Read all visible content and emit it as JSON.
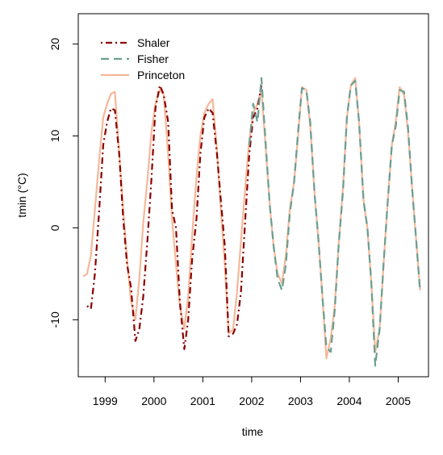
{
  "chart_data": {
    "type": "line",
    "xlabel": "time",
    "ylabel": "tmin (°C)",
    "xlim": [
      1998.45,
      2005.62
    ],
    "ylim": [
      -16.2,
      23.3
    ],
    "x_ticks": [
      1999,
      2000,
      2001,
      2002,
      2003,
      2004,
      2005
    ],
    "y_ticks": [
      -10,
      0,
      10,
      20
    ],
    "grid": false,
    "legend_position": "top-left",
    "series": [
      {
        "name": "Shaler",
        "color": "#8b0000",
        "dash": "dotdash",
        "points": [
          [
            1998.63,
            -8.5
          ],
          [
            1998.71,
            -8.8
          ],
          [
            1998.79,
            -5.0
          ],
          [
            1998.88,
            2.0
          ],
          [
            1998.96,
            9.0
          ],
          [
            1999.04,
            11.5
          ],
          [
            1999.12,
            13.0
          ],
          [
            1999.2,
            12.8
          ],
          [
            1999.29,
            8.0
          ],
          [
            1999.37,
            1.0
          ],
          [
            1999.45,
            -4.0
          ],
          [
            1999.53,
            -6.5
          ],
          [
            1999.62,
            -12.3
          ],
          [
            1999.7,
            -11.0
          ],
          [
            1999.78,
            -7.5
          ],
          [
            1999.87,
            -1.0
          ],
          [
            1999.95,
            5.5
          ],
          [
            2000.03,
            13.0
          ],
          [
            2000.12,
            15.5
          ],
          [
            2000.2,
            14.5
          ],
          [
            2000.29,
            11.5
          ],
          [
            2000.37,
            2.0
          ],
          [
            2000.45,
            0.0
          ],
          [
            2000.53,
            -8.0
          ],
          [
            2000.62,
            -13.2
          ],
          [
            2000.7,
            -10.0
          ],
          [
            2000.78,
            -3.5
          ],
          [
            2000.87,
            1.0
          ],
          [
            2000.95,
            8.0
          ],
          [
            2001.03,
            12.0
          ],
          [
            2001.12,
            13.0
          ],
          [
            2001.2,
            12.5
          ],
          [
            2001.29,
            8.0
          ],
          [
            2001.37,
            3.0
          ],
          [
            2001.45,
            -2.0
          ],
          [
            2001.53,
            -11.8
          ],
          [
            2001.62,
            -11.5
          ],
          [
            2001.7,
            -10.5
          ],
          [
            2001.78,
            -7.0
          ],
          [
            2001.87,
            1.0
          ],
          [
            2001.95,
            8.0
          ],
          [
            2002.03,
            12.0
          ],
          [
            2002.12,
            13.0
          ],
          [
            2002.2,
            15.5
          ]
        ]
      },
      {
        "name": "Fisher",
        "color": "#6a9f91",
        "dash": "dashed",
        "points": [
          [
            2001.95,
            9.0
          ],
          [
            2002.03,
            13.5
          ],
          [
            2002.12,
            11.5
          ],
          [
            2002.2,
            16.3
          ],
          [
            2002.29,
            9.0
          ],
          [
            2002.37,
            2.5
          ],
          [
            2002.45,
            -2.0
          ],
          [
            2002.53,
            -5.5
          ],
          [
            2002.62,
            -6.8
          ],
          [
            2002.7,
            -4.0
          ],
          [
            2002.78,
            1.5
          ],
          [
            2002.87,
            5.0
          ],
          [
            2002.95,
            10.5
          ],
          [
            2003.03,
            15.2
          ],
          [
            2003.12,
            15.0
          ],
          [
            2003.2,
            11.5
          ],
          [
            2003.29,
            3.5
          ],
          [
            2003.37,
            -1.5
          ],
          [
            2003.45,
            -7.5
          ],
          [
            2003.53,
            -13.0
          ],
          [
            2003.62,
            -13.5
          ],
          [
            2003.7,
            -9.0
          ],
          [
            2003.78,
            -2.0
          ],
          [
            2003.87,
            4.0
          ],
          [
            2003.95,
            12.0
          ],
          [
            2004.03,
            15.5
          ],
          [
            2004.12,
            16.0
          ],
          [
            2004.2,
            11.5
          ],
          [
            2004.29,
            3.0
          ],
          [
            2004.37,
            0.0
          ],
          [
            2004.45,
            -6.0
          ],
          [
            2004.53,
            -15.0
          ],
          [
            2004.62,
            -11.0
          ],
          [
            2004.7,
            -4.0
          ],
          [
            2004.78,
            2.5
          ],
          [
            2004.87,
            9.0
          ],
          [
            2004.95,
            11.0
          ],
          [
            2005.03,
            15.0
          ],
          [
            2005.12,
            14.8
          ],
          [
            2005.2,
            11.0
          ],
          [
            2005.29,
            4.0
          ],
          [
            2005.37,
            -1.5
          ],
          [
            2005.45,
            -7.0
          ]
        ]
      },
      {
        "name": "Princeton",
        "color": "#f5b899",
        "dash": "solid",
        "points": [
          [
            1998.55,
            -5.3
          ],
          [
            1998.63,
            -5.0
          ],
          [
            1998.71,
            -3.0
          ],
          [
            1998.79,
            2.0
          ],
          [
            1998.88,
            7.5
          ],
          [
            1998.96,
            12.0
          ],
          [
            1999.04,
            13.5
          ],
          [
            1999.12,
            14.6
          ],
          [
            1999.2,
            14.8
          ],
          [
            1999.29,
            8.0
          ],
          [
            1999.37,
            2.0
          ],
          [
            1999.45,
            -3.5
          ],
          [
            1999.53,
            -8.0
          ],
          [
            1999.62,
            -10.0
          ],
          [
            1999.7,
            -5.5
          ],
          [
            1999.78,
            0.5
          ],
          [
            1999.87,
            5.5
          ],
          [
            1999.95,
            10.5
          ],
          [
            2000.03,
            13.5
          ],
          [
            2000.12,
            15.0
          ],
          [
            2000.2,
            14.5
          ],
          [
            2000.29,
            8.0
          ],
          [
            2000.37,
            1.0
          ],
          [
            2000.45,
            -4.0
          ],
          [
            2000.53,
            -8.5
          ],
          [
            2000.62,
            -11.0
          ],
          [
            2000.7,
            -7.5
          ],
          [
            2000.78,
            -1.0
          ],
          [
            2000.87,
            5.5
          ],
          [
            2000.95,
            10.0
          ],
          [
            2001.03,
            12.5
          ],
          [
            2001.12,
            13.5
          ],
          [
            2001.2,
            14.0
          ],
          [
            2001.29,
            8.5
          ],
          [
            2001.37,
            2.0
          ],
          [
            2001.45,
            -4.0
          ],
          [
            2001.53,
            -11.5
          ],
          [
            2001.62,
            -11.0
          ],
          [
            2001.7,
            -7.0
          ],
          [
            2001.78,
            -1.5
          ],
          [
            2001.87,
            4.5
          ],
          [
            2001.95,
            9.5
          ],
          [
            2002.03,
            12.5
          ],
          [
            2002.12,
            13.5
          ],
          [
            2002.2,
            15.0
          ],
          [
            2002.29,
            8.5
          ],
          [
            2002.37,
            2.5
          ],
          [
            2002.45,
            -2.0
          ],
          [
            2002.53,
            -5.0
          ],
          [
            2002.62,
            -6.0
          ],
          [
            2002.7,
            -3.0
          ],
          [
            2002.78,
            2.0
          ],
          [
            2002.87,
            5.0
          ],
          [
            2002.95,
            10.0
          ],
          [
            2003.03,
            15.3
          ],
          [
            2003.12,
            15.0
          ],
          [
            2003.2,
            11.0
          ],
          [
            2003.29,
            3.5
          ],
          [
            2003.37,
            -1.5
          ],
          [
            2003.45,
            -7.5
          ],
          [
            2003.53,
            -14.2
          ],
          [
            2003.62,
            -12.0
          ],
          [
            2003.7,
            -8.5
          ],
          [
            2003.78,
            -2.0
          ],
          [
            2003.87,
            4.5
          ],
          [
            2003.95,
            12.0
          ],
          [
            2004.03,
            15.5
          ],
          [
            2004.12,
            16.3
          ],
          [
            2004.2,
            11.5
          ],
          [
            2004.29,
            3.0
          ],
          [
            2004.37,
            0.0
          ],
          [
            2004.45,
            -6.0
          ],
          [
            2004.53,
            -13.5
          ],
          [
            2004.62,
            -11.0
          ],
          [
            2004.7,
            -4.0
          ],
          [
            2004.78,
            2.5
          ],
          [
            2004.87,
            9.0
          ],
          [
            2004.95,
            11.5
          ],
          [
            2005.03,
            15.3
          ],
          [
            2005.12,
            14.5
          ],
          [
            2005.2,
            10.5
          ],
          [
            2005.29,
            4.0
          ],
          [
            2005.37,
            -1.5
          ],
          [
            2005.45,
            -6.8
          ]
        ]
      }
    ]
  }
}
